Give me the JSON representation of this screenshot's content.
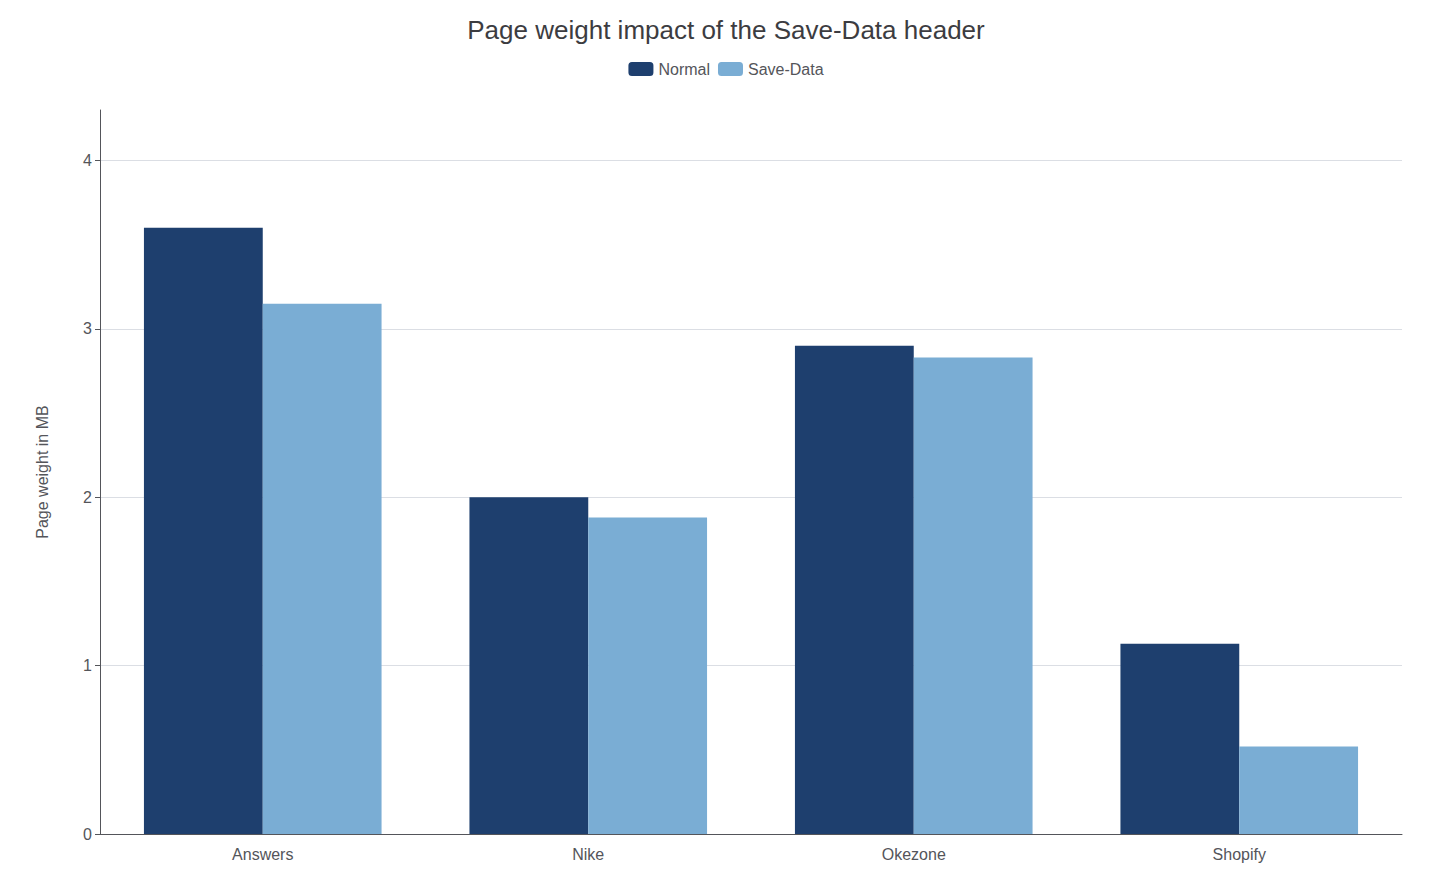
{
  "chart_data": {
    "type": "bar",
    "title": "Page weight impact of the Save-Data header",
    "ylabel": "Page weight in MB",
    "categories": [
      "Answers",
      "Nike",
      "Okezone",
      "Shopify"
    ],
    "series": [
      {
        "name": "Normal",
        "color": "#1e3f6e",
        "values": [
          3.6,
          2.0,
          2.9,
          1.13
        ]
      },
      {
        "name": "Save-Data",
        "color": "#7aadd4",
        "values": [
          3.15,
          1.88,
          2.83,
          0.52
        ]
      }
    ],
    "ylim": [
      0,
      4.3
    ],
    "yticks": [
      0,
      1,
      2,
      3,
      4
    ],
    "grid": true,
    "legend": "top"
  }
}
